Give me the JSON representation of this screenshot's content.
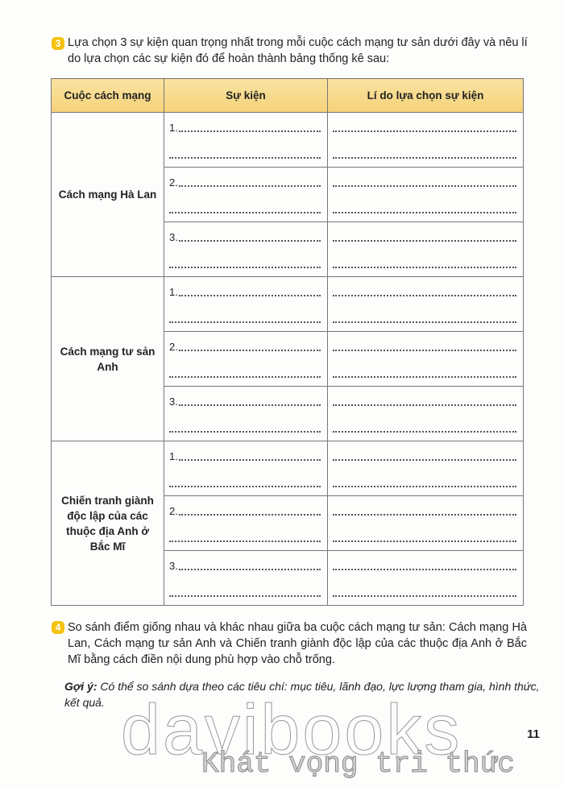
{
  "q3": {
    "number": "3",
    "text": "Lựa chọn 3 sự kiện quan trọng nhất trong mỗi cuộc cách mạng tư sản dưới đây và nêu lí do lựa chọn các sự kiện đó để hoàn thành bảng thống kê sau:"
  },
  "table": {
    "headers": [
      "Cuộc cách mạng",
      "Sự kiện",
      "Lí do lựa chọn sự kiện"
    ],
    "rows": [
      {
        "revolution": "Cách mạng Hà Lan",
        "items": [
          "1.",
          "2.",
          "3."
        ]
      },
      {
        "revolution": "Cách mạng tư sản Anh",
        "items": [
          "1.",
          "2.",
          "3."
        ]
      },
      {
        "revolution": "Chiến tranh giành độc lập của các thuộc địa Anh ở Bắc Mĩ",
        "items": [
          "1.",
          "2.",
          "3."
        ]
      }
    ]
  },
  "q4": {
    "number": "4",
    "text": "So sánh điểm giống nhau và khác nhau giữa ba cuộc cách mạng tư sản: Cách mạng Hà Lan, Cách mạng tư sản Anh và Chiến tranh giành độc lập của các thuộc địa Anh ở Bắc Mĩ bằng cách điền nội dung phù hợp vào chỗ trống."
  },
  "hint": {
    "label": "Gợi ý:",
    "text": " Có thể so sánh dựa theo các tiêu chí: mục tiêu, lãnh đạo, lực lượng tham gia, hình thức, kết quả."
  },
  "page_number": "11",
  "watermark": {
    "brand": "davibooks",
    "slogan": "Khát vọng tri thức"
  },
  "colors": {
    "badge": "#f4c20d",
    "header_bg": "#f7d98a"
  }
}
